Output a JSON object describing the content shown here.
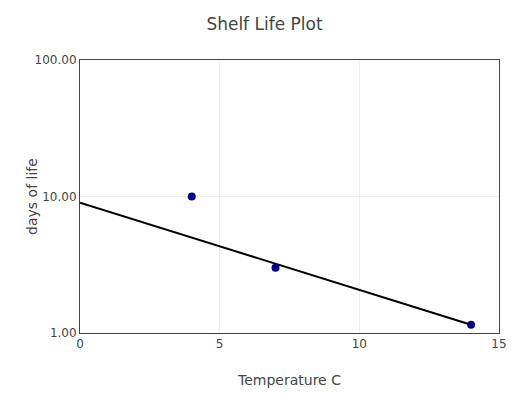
{
  "chart_data": {
    "type": "scatter",
    "title": "Shelf Life Plot",
    "xlabel": "Temperature C",
    "ylabel": "days of life",
    "log": "y",
    "xlim": [
      0,
      15
    ],
    "ylim": [
      1.0,
      100.0
    ],
    "xticks": [
      0,
      5,
      10,
      15
    ],
    "yticks": [
      {
        "value": 1.0,
        "label": "1.00"
      },
      {
        "value": 10.0,
        "label": "10.00"
      },
      {
        "value": 100.0,
        "label": "100.00"
      }
    ],
    "grid": true,
    "series": [
      {
        "type": "line",
        "color": "#000000",
        "x": [
          0,
          14
        ],
        "values": [
          9.0,
          1.15
        ]
      },
      {
        "type": "scatter",
        "marker": "circle",
        "color": "#00008B",
        "x": [
          4,
          7,
          14
        ],
        "values": [
          10.0,
          3.0,
          1.15
        ]
      }
    ]
  }
}
